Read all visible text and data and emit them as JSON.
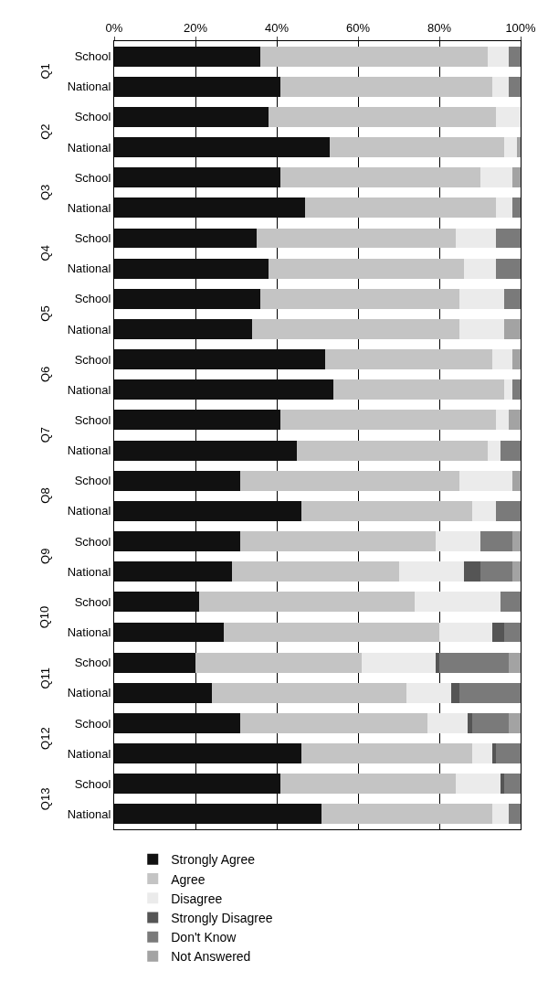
{
  "chart_data": {
    "type": "bar",
    "orientation": "horizontal",
    "stacked": true,
    "categories": [
      "School",
      "National",
      "School",
      "National",
      "School",
      "National",
      "School",
      "National",
      "School",
      "National",
      "School",
      "National",
      "School",
      "National",
      "School",
      "National",
      "School",
      "National",
      "School",
      "National",
      "School",
      "National",
      "School",
      "National",
      "School",
      "National"
    ],
    "annotations": [
      "Q1",
      "Q2",
      "Q3",
      "Q4",
      "Q5",
      "Q6",
      "Q7",
      "Q8",
      "Q9",
      "Q10",
      "Q11",
      "Q12",
      "Q13"
    ],
    "series": [
      {
        "name": "Strongly Agree",
        "color": "#111111",
        "values": [
          36,
          41,
          38,
          53,
          41,
          47,
          35,
          38,
          36,
          34,
          52,
          54,
          41,
          45,
          31,
          46,
          31,
          29,
          21,
          27,
          20,
          24,
          31,
          46,
          41,
          51
        ]
      },
      {
        "name": "Agree",
        "color": "#c4c4c4",
        "values": [
          56,
          52,
          56,
          43,
          49,
          47,
          49,
          48,
          49,
          51,
          41,
          42,
          53,
          47,
          54,
          42,
          48,
          41,
          53,
          53,
          41,
          48,
          46,
          42,
          43,
          42
        ]
      },
      {
        "name": "Disagree",
        "color": "#ebebeb",
        "values": [
          5,
          4,
          6,
          3,
          8,
          4,
          10,
          8,
          11,
          11,
          5,
          2,
          3,
          3,
          13,
          6,
          11,
          16,
          21,
          13,
          18,
          11,
          10,
          5,
          11,
          4
        ]
      },
      {
        "name": "Strongly Disagree",
        "color": "#555555",
        "values": [
          0,
          0,
          0,
          0,
          0,
          0,
          0,
          0,
          0,
          0,
          0,
          0,
          0,
          0,
          0,
          0,
          0,
          4,
          0,
          3,
          1,
          2,
          1,
          1,
          1,
          0
        ]
      },
      {
        "name": "Don't Know",
        "color": "#7a7a7a",
        "values": [
          3,
          3,
          0,
          0,
          0,
          2,
          6,
          6,
          4,
          0,
          0,
          2,
          0,
          5,
          0,
          6,
          8,
          8,
          5,
          4,
          17,
          15,
          9,
          6,
          4,
          3
        ]
      },
      {
        "name": "Not Answered",
        "color": "#a3a3a3",
        "values": [
          0,
          0,
          0,
          1,
          2,
          0,
          0,
          0,
          0,
          4,
          2,
          0,
          3,
          0,
          2,
          0,
          2,
          2,
          0,
          0,
          3,
          0,
          3,
          0,
          0,
          0
        ]
      }
    ],
    "xlim": [
      0,
      100
    ],
    "xticks": [
      {
        "value": 0,
        "label": "0%"
      },
      {
        "value": 20,
        "label": "20%"
      },
      {
        "value": 40,
        "label": "40%"
      },
      {
        "value": 60,
        "label": "60%"
      },
      {
        "value": 80,
        "label": "80%"
      },
      {
        "value": 100,
        "label": "100%"
      }
    ],
    "grid": "x",
    "legend": "bottom"
  }
}
